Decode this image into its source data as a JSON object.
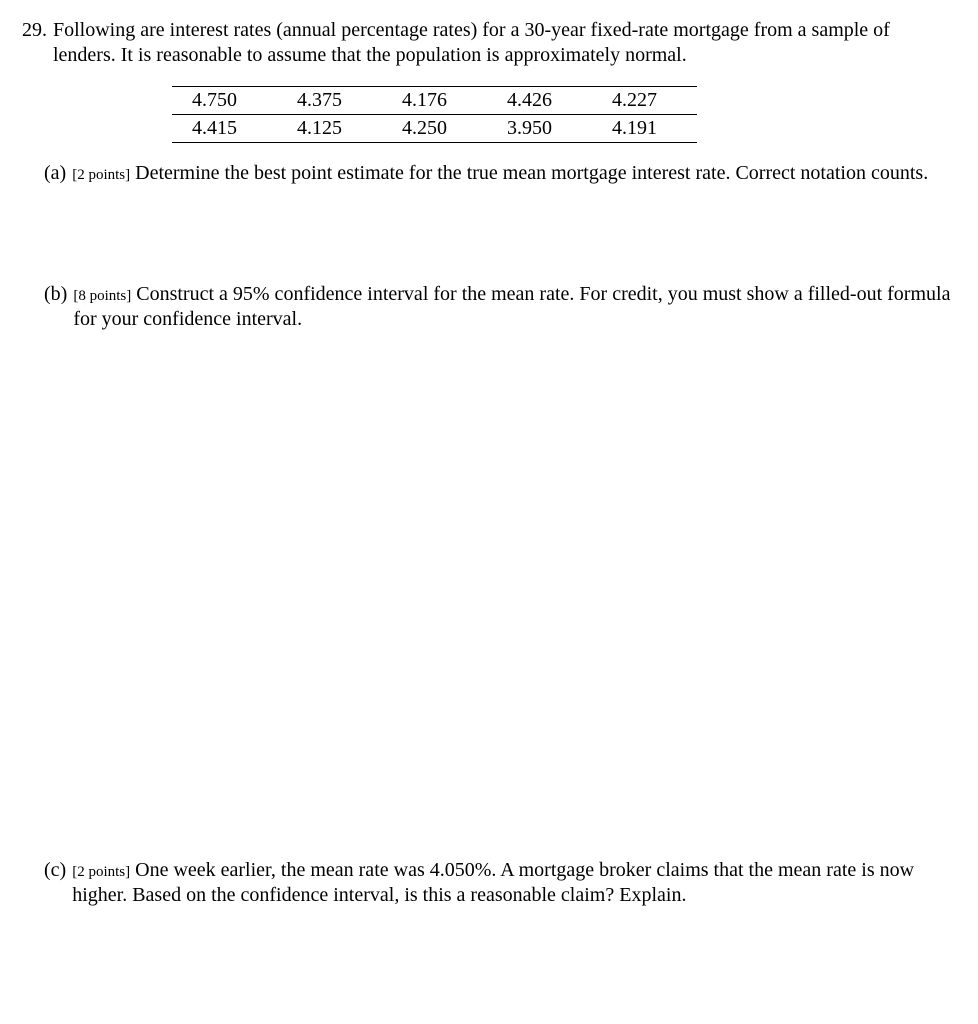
{
  "question": {
    "number": "29.",
    "stem": "Following are interest rates (annual percentage rates) for a 30-year fixed-rate mortgage from a sample of lenders.  It is reasonable to assume that the population is approximately normal."
  },
  "table": {
    "rows": [
      [
        "4.750",
        "4.375",
        "4.176",
        "4.426",
        "4.227"
      ],
      [
        "4.415",
        "4.125",
        "4.250",
        "3.950",
        "4.191"
      ]
    ]
  },
  "parts": {
    "a": {
      "label": "(a)",
      "points": "[2 points]",
      "text": "Determine the best point estimate for the true mean mortgage interest rate.  Correct notation counts."
    },
    "b": {
      "label": "(b)",
      "points": "[8 points]",
      "text": "Construct a 95% confidence interval for the mean rate.  For credit, you must show a filled-out formula for your confidence interval."
    },
    "c": {
      "label": "(c)",
      "points": "[2 points]",
      "text": "One week earlier, the mean rate was 4.050%.  A mortgage broker claims that the mean rate is now higher.  Based on the confidence interval, is this a reasonable claim?  Explain."
    }
  }
}
